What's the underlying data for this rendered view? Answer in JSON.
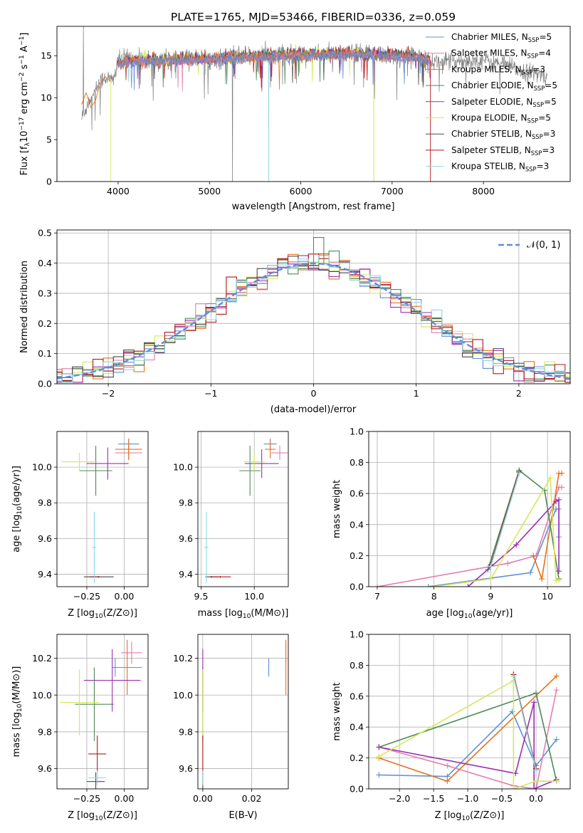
{
  "figure_title": "PLATE=1765, MJD=53466, FIBERID=0336, z=0.059",
  "colors": {
    "s0": "#5e8fd8",
    "s1": "#e07fb0",
    "s2": "#e8701a",
    "s3": "#4e8a58",
    "s4": "#9b2fb0",
    "s5": "#d4e85a",
    "s6": "#4a4a4a",
    "s7": "#b31818",
    "s8": "#8fd8e0"
  },
  "chart_data": [
    {
      "id": "spectrum",
      "type": "line",
      "title": "",
      "xlabel": "wavelength [Angstrom, rest frame]",
      "ylabel_main": "Flux [f",
      "ylabel_sub": "λ",
      "ylabel_rest": "10",
      "ylabel_exp": "−17",
      "ylabel_tail": " erg cm",
      "ylabel_exp2": "−2",
      "ylabel_tail2": " s",
      "ylabel_exp3": "−1",
      "ylabel_tail3": " A",
      "ylabel_exp4": "−1",
      "ylabel_end": "]",
      "xlim": [
        3330,
        8950
      ],
      "ylim": [
        0,
        18.5
      ],
      "xticks": [
        4000,
        5000,
        6000,
        7000,
        8000
      ],
      "yticks": [
        0,
        5,
        10,
        15
      ],
      "grid": false,
      "legend_position": "upper right",
      "legend": [
        {
          "pre": "Chabrier MILES, N",
          "sub": "SSP",
          "post": "=5"
        },
        {
          "pre": "Salpeter MILES, N",
          "sub": "SSP",
          "post": "=4"
        },
        {
          "pre": "Kroupa MILES, N",
          "sub": "SSP",
          "post": "=3"
        },
        {
          "pre": "Chabrier ELODIE, N",
          "sub": "SSP",
          "post": "=5"
        },
        {
          "pre": "Salpeter ELODIE, N",
          "sub": "SSP",
          "post": "=5"
        },
        {
          "pre": "Kroupa ELODIE, N",
          "sub": "SSP",
          "post": "=5"
        },
        {
          "pre": "Chabrier STELIB, N",
          "sub": "SSP",
          "post": "=3"
        },
        {
          "pre": "Salpeter STELIB, N",
          "sub": "SSP",
          "post": "=3"
        },
        {
          "pre": "Kroupa STELIB, N",
          "sub": "SSP",
          "post": "=3"
        }
      ],
      "data_color": "#808080",
      "data_anchor": {
        "x": [
          3600,
          3650,
          3700,
          3780,
          3850,
          3950,
          3990,
          4100,
          4300,
          4500,
          4800,
          5000,
          5200,
          5500,
          5800,
          6000,
          6300,
          6600,
          6900,
          7200,
          7400,
          7800,
          8000,
          8200,
          8400,
          8600,
          8700
        ],
        "y": [
          7.5,
          8.8,
          10.0,
          11.5,
          12.5,
          12.0,
          14.2,
          14.8,
          14.5,
          14.2,
          14.7,
          14.5,
          14.9,
          15.1,
          15.2,
          15.0,
          15.2,
          15.3,
          15.2,
          15.0,
          14.3,
          14.4,
          14.5,
          14.0,
          13.2,
          12.8,
          12.5
        ]
      },
      "model_anchor": {
        "x": [
          3600,
          3700,
          3800,
          3900,
          3990,
          4200,
          4500,
          5000,
          5500,
          6000,
          6500,
          7000,
          7300,
          7420
        ],
        "y": [
          9.0,
          9.7,
          12.0,
          12.8,
          14.0,
          14.4,
          14.5,
          14.6,
          14.9,
          15.1,
          15.2,
          15.1,
          14.8,
          14.5
        ]
      }
    },
    {
      "id": "residuals",
      "type": "histogram",
      "title": "",
      "xlabel": "(data-model)/error",
      "ylabel": "Normed distribution",
      "xlim": [
        -2.5,
        2.5
      ],
      "ylim": [
        0,
        0.51
      ],
      "xticks": [
        -2,
        -1,
        0,
        1,
        2
      ],
      "yticks": [
        0.0,
        0.1,
        0.2,
        0.3,
        0.4,
        0.5
      ],
      "grid": true,
      "legend_position": "upper right",
      "legend_label": "𝒩(0, 1)",
      "bin_width": 0.1,
      "reference_curve": "normal(0,1)"
    },
    {
      "id": "age_vs_Z",
      "type": "errorbar",
      "xlabel": "Z [log10(Z/Z⊙)]",
      "xlabel_pre": "Z [log",
      "xlabel_sub": "10",
      "xlabel_post": "(Z/Z⊙)]",
      "ylabel_pre": "age  [log",
      "ylabel_sub": "10",
      "ylabel_post": "(age/yr)]",
      "xlim": [
        -0.45,
        0.16
      ],
      "ylim": [
        9.33,
        10.2
      ],
      "xticks": [
        -0.25,
        0.0
      ],
      "yticks": [
        9.4,
        9.6,
        9.8,
        10.0
      ],
      "grid": true,
      "points": [
        {
          "s": 0,
          "x": 0.03,
          "y": 10.13,
          "xerr": 0.07,
          "yerr": 0.03
        },
        {
          "s": 1,
          "x": 0.03,
          "y": 10.08,
          "xerr": 0.09,
          "yerr": 0.04
        },
        {
          "s": 2,
          "x": 0.03,
          "y": 10.1,
          "xerr": 0.09,
          "yerr": 0.06
        },
        {
          "s": 3,
          "x": -0.19,
          "y": 9.98,
          "xerr": 0.11,
          "yerr": 0.14
        },
        {
          "s": 4,
          "x": -0.11,
          "y": 10.02,
          "xerr": 0.14,
          "yerr": 0.09
        },
        {
          "s": 5,
          "x": -0.3,
          "y": 10.03,
          "xerr": 0.12,
          "yerr": 0.05
        },
        {
          "s": 6,
          "x": -0.17,
          "y": 9.385,
          "xerr": 0.1,
          "yerr": 0.005
        },
        {
          "s": 7,
          "x": -0.2,
          "y": 9.385,
          "xerr": 0.03,
          "yerr": 0.005
        },
        {
          "s": 8,
          "x": -0.2,
          "y": 9.55,
          "xerr": 0.015,
          "yerr": 0.2
        }
      ]
    },
    {
      "id": "age_vs_mass",
      "type": "errorbar",
      "xlabel_pre": "mass [log",
      "xlabel_sub": "10",
      "xlabel_post": "(M/M⊙)]",
      "xlim": [
        9.47,
        10.32
      ],
      "ylim": [
        9.33,
        10.2
      ],
      "xticks": [
        9.5,
        10.0
      ],
      "yticks": [
        9.4,
        9.6,
        9.8,
        10.0
      ],
      "grid": true,
      "points": [
        {
          "s": 0,
          "x": 10.15,
          "y": 10.13,
          "xerr": 0.06,
          "yerr": 0.03
        },
        {
          "s": 1,
          "x": 10.24,
          "y": 10.08,
          "xerr": 0.08,
          "yerr": 0.04
        },
        {
          "s": 2,
          "x": 10.15,
          "y": 10.1,
          "xerr": 0.05,
          "yerr": 0.05
        },
        {
          "s": 3,
          "x": 9.96,
          "y": 9.98,
          "xerr": 0.1,
          "yerr": 0.14
        },
        {
          "s": 4,
          "x": 10.07,
          "y": 10.02,
          "xerr": 0.16,
          "yerr": 0.08
        },
        {
          "s": 5,
          "x": 10.0,
          "y": 10.03,
          "xerr": 0.1,
          "yerr": 0.05
        },
        {
          "s": 6,
          "x": 9.6,
          "y": 9.385,
          "xerr": 0.06,
          "yerr": 0.005
        },
        {
          "s": 7,
          "x": 9.68,
          "y": 9.385,
          "xerr": 0.1,
          "yerr": 0.005
        },
        {
          "s": 8,
          "x": 9.55,
          "y": 9.55,
          "xerr": 0.02,
          "yerr": 0.2
        }
      ]
    },
    {
      "id": "massweight_vs_age",
      "type": "line",
      "xlabel_pre": "age  [log",
      "xlabel_sub": "10",
      "xlabel_post": "(age/yr)]",
      "ylabel": "mass weight",
      "xlim": [
        6.85,
        10.4
      ],
      "ylim": [
        0.0,
        1.0
      ],
      "xticks": [
        7,
        8,
        9,
        10
      ],
      "yticks": [
        0.0,
        0.2,
        0.4,
        0.6,
        0.8,
        1.0
      ],
      "grid": true,
      "series": [
        {
          "s": 0,
          "x": [
            7.9,
            9.7,
            10.15,
            10.2,
            10.2
          ],
          "y": [
            0.0,
            0.09,
            0.5,
            0.5,
            0.32
          ]
        },
        {
          "s": 1,
          "x": [
            7.0,
            9.3,
            9.8,
            10.2,
            10.25
          ],
          "y": [
            0.0,
            0.15,
            0.2,
            0.64,
            0.64
          ]
        },
        {
          "s": 2,
          "x": [
            9.75,
            9.9,
            10.2,
            10.25
          ],
          "y": [
            0.2,
            0.05,
            0.73,
            0.73
          ]
        },
        {
          "s": 3,
          "x": [
            8.95,
            9.5,
            9.95,
            10.2
          ],
          "y": [
            0.11,
            0.75,
            0.62,
            0.05
          ]
        },
        {
          "s": 4,
          "x": [
            8.6,
            9.45,
            10.15,
            10.2,
            10.2
          ],
          "y": [
            0.0,
            0.27,
            0.55,
            0.56,
            0.1
          ]
        },
        {
          "s": 5,
          "x": [
            8.0,
            9.0,
            10.05,
            10.15,
            10.2
          ],
          "y": [
            0.0,
            0.05,
            0.7,
            0.04,
            0.04
          ]
        },
        {
          "s": 6,
          "x": [
            9.0,
            9.5
          ],
          "y": [
            0.14,
            0.74
          ]
        },
        {
          "s": 7,
          "x": [
            9.0,
            9.5
          ],
          "y": [
            0.14,
            0.74
          ]
        },
        {
          "s": 8,
          "x": [
            9.0,
            9.5
          ],
          "y": [
            0.13,
            0.73
          ]
        }
      ]
    },
    {
      "id": "mass_vs_Z",
      "type": "errorbar",
      "xlabel_pre": "Z [log",
      "xlabel_sub": "10",
      "xlabel_post": "(Z/Z⊙)]",
      "ylabel_pre": "mass [log",
      "ylabel_sub": "10",
      "ylabel_post": "(M/M⊙)]",
      "xlim": [
        -0.45,
        0.16
      ],
      "ylim": [
        9.49,
        10.33
      ],
      "xticks": [
        -0.25,
        0.0
      ],
      "yticks": [
        9.6,
        9.8,
        10.0,
        10.2
      ],
      "grid": true,
      "points": [
        {
          "s": 0,
          "x": -0.06,
          "y": 10.15,
          "xerr": 0.02,
          "yerr": 0.05
        },
        {
          "s": 1,
          "x": 0.05,
          "y": 10.23,
          "xerr": 0.07,
          "yerr": 0.06
        },
        {
          "s": 2,
          "x": 0.02,
          "y": 10.15,
          "xerr": 0.1,
          "yerr": 0.15
        },
        {
          "s": 3,
          "x": -0.2,
          "y": 9.95,
          "xerr": 0.13,
          "yerr": 0.2
        },
        {
          "s": 4,
          "x": -0.08,
          "y": 10.08,
          "xerr": 0.19,
          "yerr": 0.17
        },
        {
          "s": 5,
          "x": -0.3,
          "y": 9.96,
          "xerr": 0.13,
          "yerr": 0.18
        },
        {
          "s": 6,
          "x": -0.19,
          "y": 9.53,
          "xerr": 0.06,
          "yerr": 0.05
        },
        {
          "s": 7,
          "x": -0.18,
          "y": 9.68,
          "xerr": 0.06,
          "yerr": 0.1
        },
        {
          "s": 8,
          "x": -0.18,
          "y": 9.55,
          "xerr": 0.06,
          "yerr": 0.04
        }
      ]
    },
    {
      "id": "mass_vs_EBV",
      "type": "errorbar",
      "xlabel": "E(B-V)",
      "xlim": [
        -0.002,
        0.035
      ],
      "ylim": [
        9.49,
        10.33
      ],
      "xticks": [
        0.0,
        0.02
      ],
      "yticks": [
        9.6,
        9.8,
        10.0,
        10.2
      ],
      "grid": true,
      "points": [
        {
          "s": 0,
          "x": 0.027,
          "y": 10.15,
          "xerr": 0.0,
          "yerr": 0.05
        },
        {
          "s": 1,
          "x": 0.034,
          "y": 10.23,
          "xerr": 0.0,
          "yerr": 0.06
        },
        {
          "s": 2,
          "x": 0.034,
          "y": 10.15,
          "xerr": 0.0,
          "yerr": 0.15
        },
        {
          "s": 3,
          "x": 0.0,
          "y": 9.95,
          "xerr": 0.0,
          "yerr": 0.2
        },
        {
          "s": 4,
          "x": 0.0,
          "y": 10.08,
          "xerr": 0.0,
          "yerr": 0.17
        },
        {
          "s": 5,
          "x": 0.0,
          "y": 9.96,
          "xerr": 0.0,
          "yerr": 0.18
        },
        {
          "s": 6,
          "x": 0.0,
          "y": 9.53,
          "xerr": 0.0,
          "yerr": 0.05
        },
        {
          "s": 7,
          "x": 0.0,
          "y": 9.68,
          "xerr": 0.0,
          "yerr": 0.1
        },
        {
          "s": 8,
          "x": 0.0,
          "y": 9.55,
          "xerr": 0.0,
          "yerr": 0.04
        }
      ]
    },
    {
      "id": "massweight_vs_Z",
      "type": "line",
      "xlabel_pre": "Z [log",
      "xlabel_sub": "10",
      "xlabel_post": "(Z/Z⊙)]",
      "ylabel": "mass weight",
      "xlim": [
        -2.45,
        0.5
      ],
      "ylim": [
        0.0,
        1.0
      ],
      "xticks": [
        -2.0,
        -1.5,
        -1.0,
        -0.5,
        0.0
      ],
      "yticks": [
        0.0,
        0.2,
        0.4,
        0.6,
        0.8,
        1.0
      ],
      "grid": true,
      "series": [
        {
          "s": 0,
          "x": [
            -2.3,
            -1.3,
            -0.35,
            0.0,
            0.3
          ],
          "y": [
            0.09,
            0.08,
            0.5,
            0.15,
            0.32
          ]
        },
        {
          "s": 1,
          "x": [
            -2.3,
            -1.3,
            -0.33,
            0.0,
            0.3
          ],
          "y": [
            0.27,
            0.15,
            0.02,
            0.0,
            0.64
          ]
        },
        {
          "s": 2,
          "x": [
            -2.3,
            -1.3,
            0.3
          ],
          "y": [
            0.2,
            0.05,
            0.73
          ]
        },
        {
          "s": 3,
          "x": [
            -2.3,
            0.0,
            0.3
          ],
          "y": [
            0.27,
            0.62,
            0.05
          ]
        },
        {
          "s": 4,
          "x": [
            -2.3,
            -0.3,
            -0.03,
            -0.03,
            0.3
          ],
          "y": [
            0.27,
            0.1,
            0.56,
            0.0,
            0.06
          ]
        },
        {
          "s": 5,
          "x": [
            -2.3,
            -0.33,
            -0.33,
            0.0,
            0.3
          ],
          "y": [
            0.21,
            0.7,
            0.0,
            0.05,
            0.05
          ]
        },
        {
          "s": 6,
          "x": [
            -0.33,
            0.0
          ],
          "y": [
            0.74,
            0.13
          ]
        },
        {
          "s": 7,
          "x": [
            -0.33,
            0.0
          ],
          "y": [
            0.74,
            0.13
          ]
        },
        {
          "s": 8,
          "x": [
            -0.33,
            0.0
          ],
          "y": [
            0.73,
            0.12
          ]
        }
      ]
    }
  ]
}
